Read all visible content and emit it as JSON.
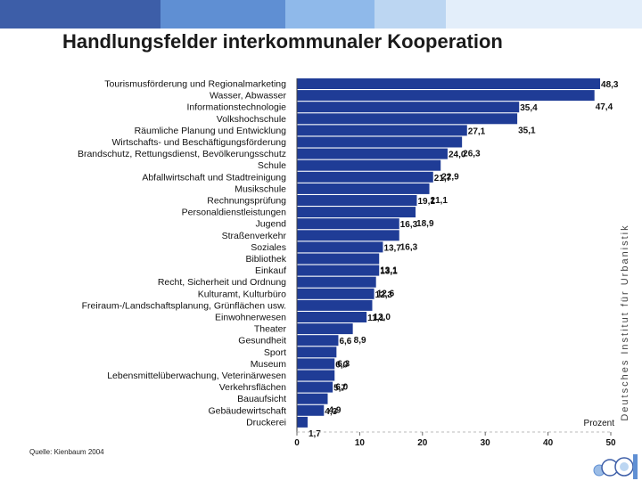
{
  "header": {
    "title": "Handlungsfelder interkommunaler Kooperation",
    "band_colors": [
      "#3d5ea8",
      "#5f8fd3",
      "#8fb9ea",
      "#bcd6f2",
      "#e3eefa"
    ]
  },
  "footer": {
    "source": "Quelle: Kienbaum 2004",
    "institute": "Deutsches Institut für Urbanistik"
  },
  "chart_data": {
    "type": "bar",
    "orientation": "horizontal",
    "categories": [
      "Tourismusförderung und Regionalmarketing",
      "Wasser, Abwasser",
      "Informationstechnologie",
      "Volkshochschule",
      "Räumliche Planung und Entwicklung",
      "Wirtschafts- und Beschäftigungsförderung",
      "Brandschutz, Rettungsdienst, Bevölkerungsschutz",
      "Schule",
      "Abfallwirtschaft und Stadtreinigung",
      "Musikschule",
      "Rechnungsprüfung",
      "Personaldienstleistungen",
      "Jugend",
      "Straßenverkehr",
      "Soziales",
      "Bibliothek",
      "Einkauf",
      "Recht, Sicherheit und Ordnung",
      "Kulturamt, Kulturbüro",
      "Freiraum-/Landschaftsplanung, Grünflächen usw.",
      "Einwohnerwesen",
      "Theater",
      "Gesundheit",
      "Sport",
      "Museum",
      "Lebensmittelüberwachung, Veterinärwesen",
      "Verkehrsflächen",
      "Bauaufsicht",
      "Gebäudewirtschaft",
      "Druckerei"
    ],
    "values": [
      48.3,
      47.4,
      35.4,
      35.1,
      27.1,
      26.3,
      24.0,
      22.9,
      21.7,
      21.1,
      19.1,
      18.9,
      16.3,
      16.3,
      13.7,
      13.1,
      13.1,
      12.6,
      12.3,
      12.0,
      11.1,
      8.9,
      6.6,
      6.3,
      6.0,
      6.0,
      5.7,
      4.9,
      4.3,
      1.7
    ],
    "value_labels": [
      "48,3",
      "47,4",
      "35,4",
      "35,1",
      "27,1",
      "26,3",
      "24,0",
      "22,9",
      "21,7",
      "21,1",
      "19,1",
      "18,9",
      "16,3",
      "16,3",
      "13,7",
      "13,1",
      "13,1",
      "12,6",
      "12,3",
      "12,0",
      "11,1",
      "8,9",
      "6,6",
      "6,3",
      "6,0",
      "6,0",
      "5,7",
      "4,9",
      "4,3",
      "1,7"
    ],
    "xlim": [
      0,
      50
    ],
    "xticks": [
      0,
      10,
      20,
      30,
      40,
      50
    ],
    "xlabel": "Prozent",
    "bar_color": "#1f3c96",
    "grid": false
  }
}
